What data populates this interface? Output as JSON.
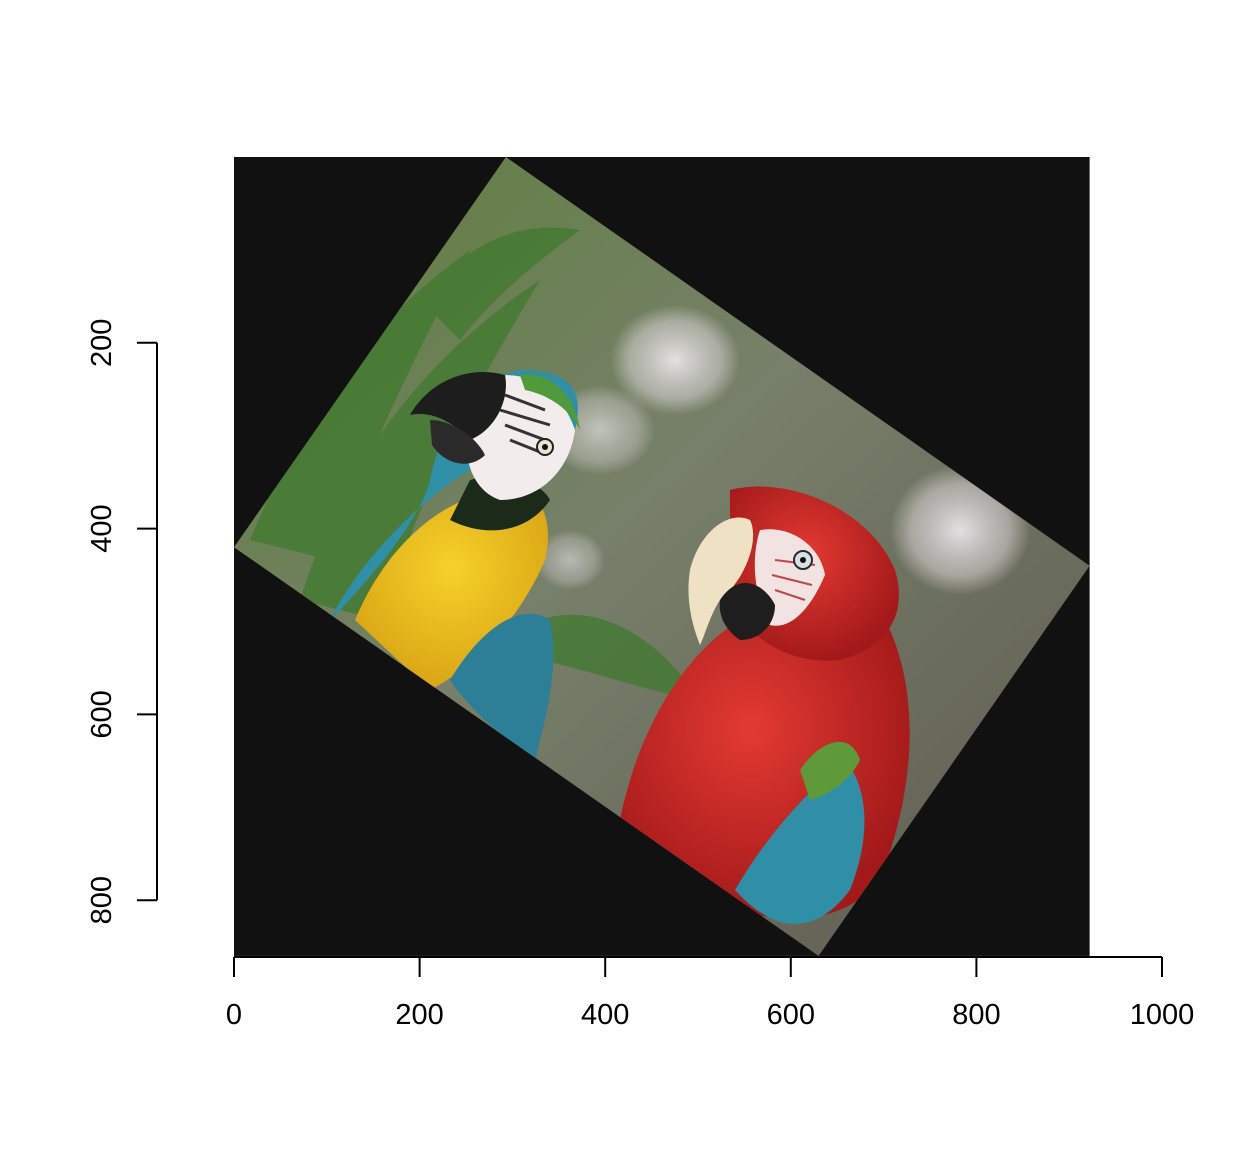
{
  "chart_data": {
    "type": "image",
    "title": "",
    "xlabel": "",
    "ylabel": "",
    "xlim": [
      0,
      1000
    ],
    "ylim": [
      860,
      0
    ],
    "x_ticks": [
      0,
      200,
      400,
      600,
      800,
      1000
    ],
    "y_ticks": [
      200,
      400,
      600,
      800
    ],
    "x_tick_labels": [
      "0",
      "200",
      "400",
      "600",
      "800",
      "1000"
    ],
    "y_tick_labels": [
      "200",
      "400",
      "600",
      "800"
    ],
    "image_extent": {
      "x": [
        0,
        922
      ],
      "y": [
        0,
        860
      ]
    },
    "image_background": "#111111",
    "rotated_photo": {
      "description_corners_data_units": [
        [
          293,
          0
        ],
        [
          922,
          440
        ],
        [
          630,
          860
        ],
        [
          0,
          420
        ]
      ],
      "subjects": [
        "blue-and-yellow-macaw",
        "green-winged-macaw"
      ]
    },
    "grid": false,
    "legend": "none"
  },
  "colors": {
    "frame": "#111111",
    "foliage": "#4f7a34",
    "bokeh": "#c9c4be",
    "macaw_yellow": "#e8b81a",
    "macaw_blue": "#2f8fa6",
    "macaw_red": "#c2211f"
  }
}
